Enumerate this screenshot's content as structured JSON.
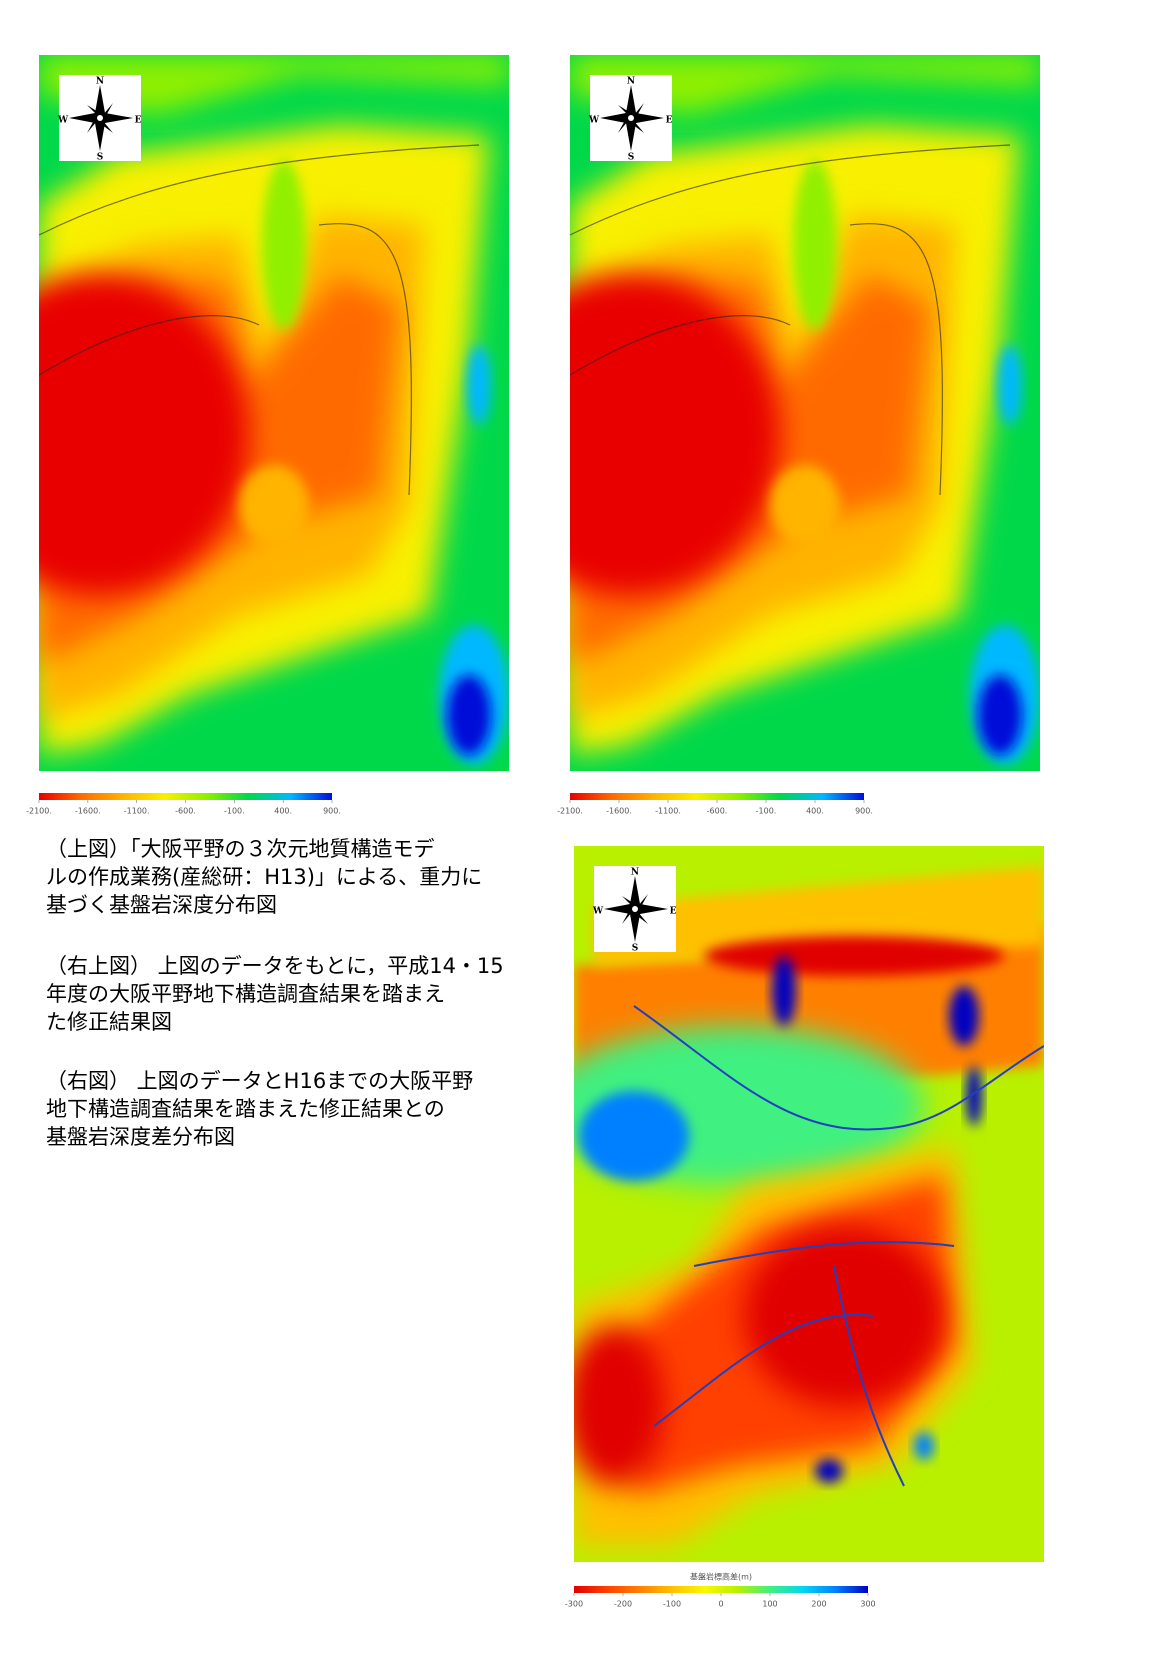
{
  "compass": [
    "N",
    "E",
    "S",
    "W"
  ],
  "maps": [
    {
      "colorbar": {
        "lim": [
          -2100,
          900
        ],
        "ticks": [
          {
            "value": -2100,
            "label": "-2100."
          },
          {
            "value": -1600,
            "label": "-1600."
          },
          {
            "value": -1100,
            "label": "-1100."
          },
          {
            "value": -600,
            "label": "-600."
          },
          {
            "value": -100,
            "label": "-100."
          },
          {
            "value": 400,
            "label": "400."
          },
          {
            "value": 900,
            "label": "900."
          }
        ],
        "colors": [
          "#e80000",
          "#ff6a00",
          "#ffb400",
          "#f8f000",
          "#90f000",
          "#00d84a",
          "#00b8ff",
          "#0010d8"
        ]
      }
    },
    {
      "colorbar": {
        "lim": [
          -2100,
          900
        ],
        "ticks": [
          {
            "value": -2100,
            "label": "-2100."
          },
          {
            "value": -1600,
            "label": "-1600."
          },
          {
            "value": -1100,
            "label": "-1100."
          },
          {
            "value": -600,
            "label": "-600."
          },
          {
            "value": -100,
            "label": "-100."
          },
          {
            "value": 400,
            "label": "400."
          },
          {
            "value": 900,
            "label": "900."
          }
        ],
        "colors": [
          "#e80000",
          "#ff6a00",
          "#ffb400",
          "#f8f000",
          "#90f000",
          "#00d84a",
          "#00b8ff",
          "#0010d8"
        ]
      }
    },
    {
      "colorbar": {
        "title": "基盤岩標高差(m)",
        "lim": [
          -300,
          300
        ],
        "ticks": [
          -300,
          -200,
          -100,
          0,
          100,
          200,
          300
        ],
        "colors": [
          "#e00000",
          "#ff4000",
          "#ff8000",
          "#ffc000",
          "#f8f800",
          "#b8f000",
          "#40f080",
          "#00d8f0",
          "#0080ff",
          "#0000c0"
        ]
      }
    }
  ],
  "captions": [
    {
      "lines": [
        "（上図）「大阪平野の３次元地質構造モデ",
        "ルの作成業務(産総研：H13)」による、重力に",
        "基づく基盤岩深度分布図"
      ]
    },
    {
      "lines": [
        "（右上図） 上図のデータをもとに，平成14・15",
        "年度の大阪平野地下構造調査結果を踏まえ",
        "た修正結果図"
      ]
    },
    {
      "lines": [
        "（右図） 上図のデータとH16までの大阪平野",
        "地下構造調査結果を踏まえた修正結果との",
        "基盤岩深度差分布図"
      ]
    }
  ]
}
